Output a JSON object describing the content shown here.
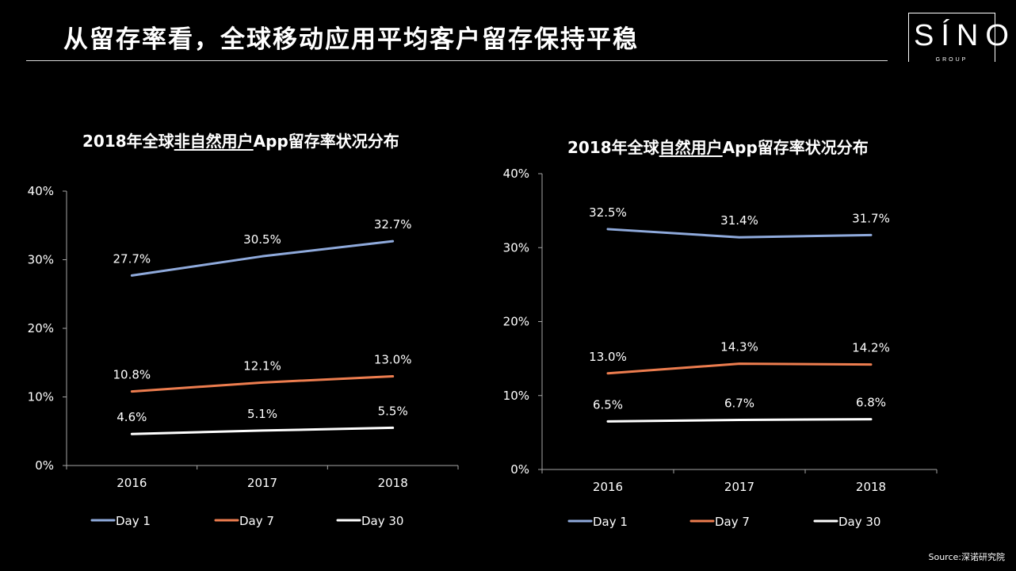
{
  "header": {
    "title": "从留存率看，全球移动应用平均客户留存保持平稳",
    "logo_main": "SÍNO",
    "logo_sub": "GROUP"
  },
  "source": "Source:深诺研究院",
  "colors": {
    "day1": "#8faadc",
    "day7": "#ed7d4f",
    "day30": "#ffffff",
    "axis": "#a6a6a6"
  },
  "chart_data": [
    {
      "type": "line",
      "title_pre": "2018年全球",
      "title_emph": "非自然用户",
      "title_post": "App留存率状况分布",
      "categories": [
        "2016",
        "2017",
        "2018"
      ],
      "ylim": [
        0,
        40
      ],
      "yticks": [
        "0%",
        "10%",
        "20%",
        "30%",
        "40%"
      ],
      "legend_position": "bottom",
      "series": [
        {
          "name": "Day 1",
          "values": [
            27.7,
            30.5,
            32.7
          ],
          "labels": [
            "27.7%",
            "30.5%",
            "32.7%"
          ]
        },
        {
          "name": "Day 7",
          "values": [
            10.8,
            12.1,
            13.0
          ],
          "labels": [
            "10.8%",
            "12.1%",
            "13.0%"
          ]
        },
        {
          "name": "Day 30",
          "values": [
            4.6,
            5.1,
            5.5
          ],
          "labels": [
            "4.6%",
            "5.1%",
            "5.5%"
          ]
        }
      ]
    },
    {
      "type": "line",
      "title_pre": "2018年全球",
      "title_emph": "自然用户",
      "title_post": "App留存率状况分布",
      "categories": [
        "2016",
        "2017",
        "2018"
      ],
      "ylim": [
        0,
        40
      ],
      "yticks": [
        "0%",
        "10%",
        "20%",
        "30%",
        "40%"
      ],
      "legend_position": "bottom",
      "series": [
        {
          "name": "Day 1",
          "values": [
            32.5,
            31.4,
            31.7
          ],
          "labels": [
            "32.5%",
            "31.4%",
            "31.7%"
          ]
        },
        {
          "name": "Day 7",
          "values": [
            13.0,
            14.3,
            14.2
          ],
          "labels": [
            "13.0%",
            "14.3%",
            "14.2%"
          ]
        },
        {
          "name": "Day 30",
          "values": [
            6.5,
            6.7,
            6.8
          ],
          "labels": [
            "6.5%",
            "6.7%",
            "6.8%"
          ]
        }
      ]
    }
  ]
}
